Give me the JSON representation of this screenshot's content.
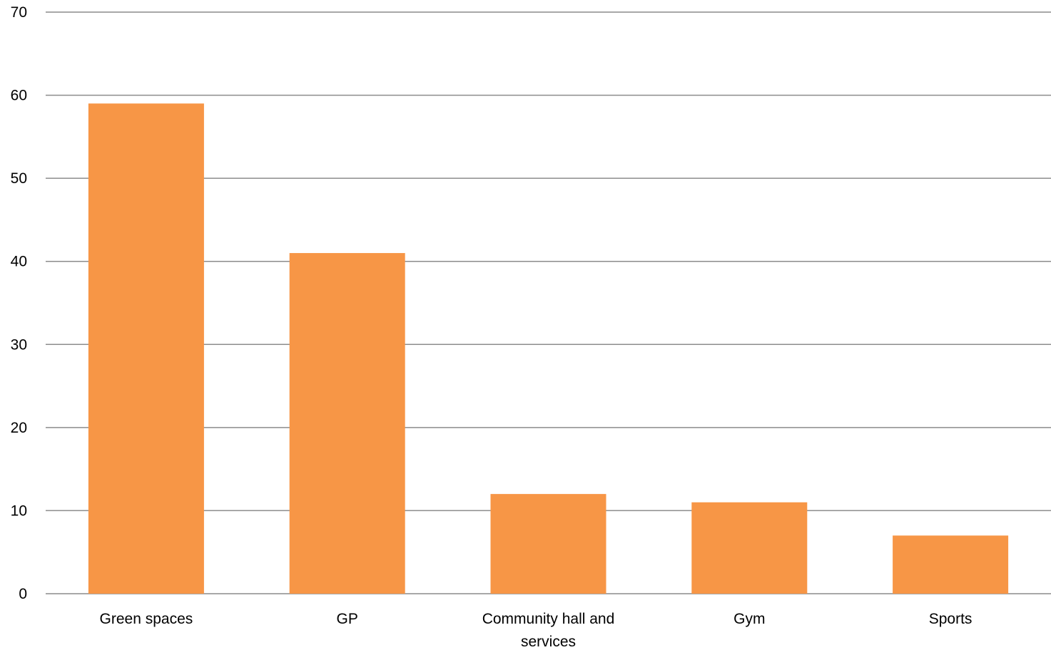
{
  "chart_data": {
    "type": "bar",
    "categories": [
      "Green spaces",
      "GP",
      "Community hall and services",
      "Gym",
      "Sports"
    ],
    "category_label_lines": [
      [
        "Green spaces"
      ],
      [
        "GP"
      ],
      [
        "Community hall and",
        "services"
      ],
      [
        "Gym"
      ],
      [
        "Sports"
      ]
    ],
    "values": [
      59,
      41,
      12,
      11,
      7
    ],
    "ylim": [
      0,
      70
    ],
    "yticks": [
      0,
      10,
      20,
      30,
      40,
      50,
      60,
      70
    ],
    "grid": true,
    "title": "",
    "xlabel": "",
    "ylabel": "",
    "bar_color": "#f79646",
    "grid_color": "#8c8c8c"
  }
}
